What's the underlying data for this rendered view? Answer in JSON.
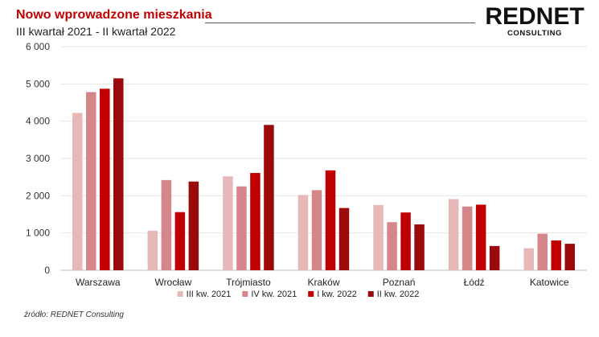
{
  "header": {
    "title": "Nowo wprowadzone mieszkania",
    "subtitle": "III kwartał 2021 - II kwartał 2022"
  },
  "logo": {
    "main": "REDNET",
    "sub": "CONSULTING"
  },
  "source": "źródło: REDNET Consulting",
  "chart_data": {
    "type": "bar",
    "categories": [
      "Warszawa",
      "Wrocław",
      "Trójmiasto",
      "Kraków",
      "Poznań",
      "Łódź",
      "Katowice"
    ],
    "series": [
      {
        "name": "III kw. 2021",
        "color": "#e6b8b7",
        "values": [
          4220,
          1060,
          2520,
          2020,
          1750,
          1910,
          590
        ]
      },
      {
        "name": "IV kw. 2021",
        "color": "#d4868a",
        "values": [
          4780,
          2420,
          2250,
          2150,
          1290,
          1710,
          980
        ]
      },
      {
        "name": "I kw. 2022",
        "color": "#c00000",
        "values": [
          4870,
          1560,
          2610,
          2680,
          1550,
          1760,
          800
        ]
      },
      {
        "name": "II kw. 2022",
        "color": "#9b0a0a",
        "values": [
          5150,
          2380,
          3900,
          1670,
          1230,
          650,
          710
        ]
      }
    ],
    "yticks": [
      "0",
      "1 000",
      "2 000",
      "3 000",
      "4 000",
      "5 000",
      "6 000"
    ],
    "ylim": [
      0,
      6000
    ],
    "grid": true,
    "legend_position": "bottom"
  }
}
